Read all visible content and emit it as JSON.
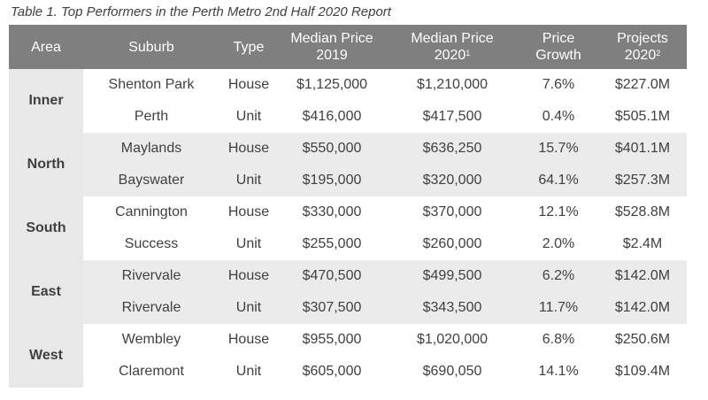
{
  "caption": "Table 1. Top Performers in the Perth Metro 2nd Half 2020 Report",
  "headers": {
    "area": "Area",
    "suburb": "Suburb",
    "type": "Type",
    "median2019_line1": "Median Price",
    "median2019_line2": "2019",
    "median2020_line1": "Median Price",
    "median2020_line2": "2020",
    "median2020_sup": "1",
    "growth_line1": "Price",
    "growth_line2": "Growth",
    "projects_line1": "Projects",
    "projects_line2": "2020",
    "projects_sup": "2"
  },
  "areas": [
    {
      "name": "Inner",
      "rows": [
        {
          "suburb": "Shenton Park",
          "type": "House",
          "median2019": "$1,125,000",
          "median2020": "$1,210,000",
          "growth": "7.6%",
          "projects": "$227.0M"
        },
        {
          "suburb": "Perth",
          "type": "Unit",
          "median2019": "$416,000",
          "median2020": "$417,500",
          "growth": "0.4%",
          "projects": "$505.1M"
        }
      ]
    },
    {
      "name": "North",
      "rows": [
        {
          "suburb": "Maylands",
          "type": "House",
          "median2019": "$550,000",
          "median2020": "$636,250",
          "growth": "15.7%",
          "projects": "$401.1M"
        },
        {
          "suburb": "Bayswater",
          "type": "Unit",
          "median2019": "$195,000",
          "median2020": "$320,000",
          "growth": "64.1%",
          "projects": "$257.3M"
        }
      ]
    },
    {
      "name": "South",
      "rows": [
        {
          "suburb": "Cannington",
          "type": "House",
          "median2019": "$330,000",
          "median2020": "$370,000",
          "growth": "12.1%",
          "projects": "$528.8M"
        },
        {
          "suburb": "Success",
          "type": "Unit",
          "median2019": "$255,000",
          "median2020": "$260,000",
          "growth": "2.0%",
          "projects": "$2.4M"
        }
      ]
    },
    {
      "name": "East",
      "rows": [
        {
          "suburb": "Rivervale",
          "type": "House",
          "median2019": "$470,500",
          "median2020": "$499,500",
          "growth": "6.2%",
          "projects": "$142.0M"
        },
        {
          "suburb": "Rivervale",
          "type": "Unit",
          "median2019": "$307,500",
          "median2020": "$343,500",
          "growth": "11.7%",
          "projects": "$142.0M"
        }
      ]
    },
    {
      "name": "West",
      "rows": [
        {
          "suburb": "Wembley",
          "type": "House",
          "median2019": "$955,000",
          "median2020": "$1,020,000",
          "growth": "6.8%",
          "projects": "$250.6M"
        },
        {
          "suburb": "Claremont",
          "type": "Unit",
          "median2019": "$605,000",
          "median2020": "$690,050",
          "growth": "14.1%",
          "projects": "$109.4M"
        }
      ]
    }
  ],
  "colors": {
    "header_bg": "#7f7f7f",
    "band_shade": "#ebebeb",
    "area_bg": "#e8e8e8",
    "text": "#404040"
  }
}
